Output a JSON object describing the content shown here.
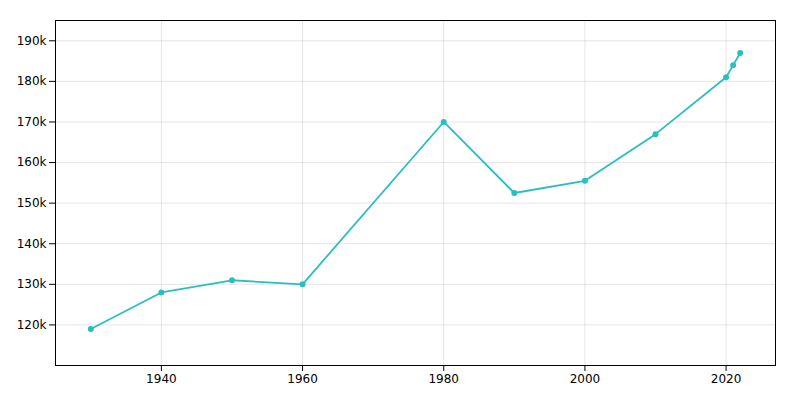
{
  "chart_data": {
    "type": "line",
    "x": [
      1930,
      1940,
      1950,
      1960,
      1980,
      1990,
      2000,
      2010,
      2020,
      2021,
      2022
    ],
    "values": [
      119000,
      128000,
      131000,
      130000,
      170000,
      152500,
      155500,
      167000,
      181000,
      184000,
      187000
    ],
    "color": "#2abfbf",
    "marker": "circle",
    "xlim": [
      1925,
      2027
    ],
    "xticks": [
      1940,
      1960,
      1980,
      2000,
      2020
    ],
    "ylim": [
      110000,
      195000
    ],
    "yticks": [
      {
        "value": 120000,
        "label": "120k"
      },
      {
        "value": 130000,
        "label": "130k"
      },
      {
        "value": 140000,
        "label": "140k"
      },
      {
        "value": 150000,
        "label": "150k"
      },
      {
        "value": 160000,
        "label": "160k"
      },
      {
        "value": 170000,
        "label": "170k"
      },
      {
        "value": 180000,
        "label": "180k"
      },
      {
        "value": 190000,
        "label": "190k"
      }
    ],
    "grid": true
  }
}
